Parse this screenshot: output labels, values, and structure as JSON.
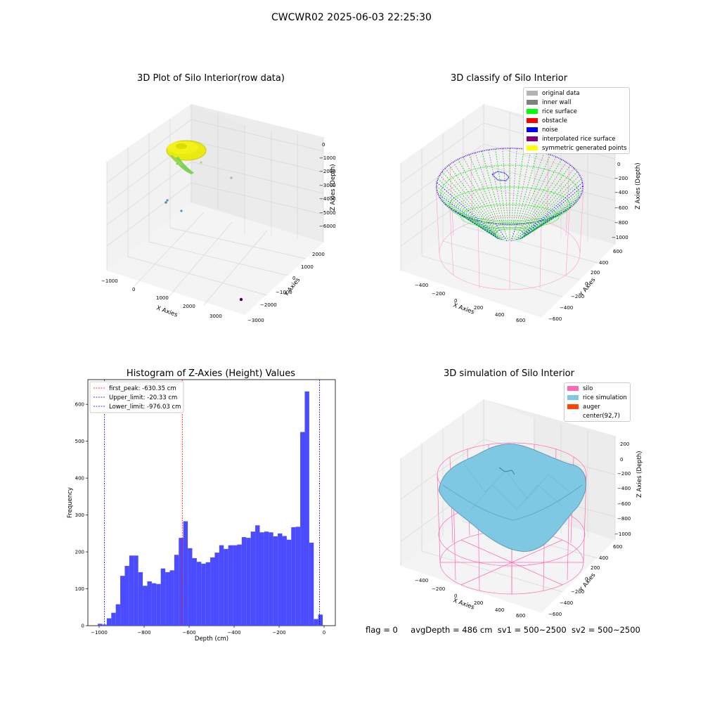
{
  "figure_title": "CWCWR02 2025-06-03 22:25:30",
  "footer": {
    "flag": "flag = 0",
    "avg_depth": "avgDepth = 486 cm",
    "sv1": "sv1 = 500~2500",
    "sv2": "sv2 = 500~2500"
  },
  "colors": {
    "hist_bar": "#4b4bff",
    "first_peak_line": "#ff0000",
    "limit_line": "#0000cc",
    "original_data": "#b3b3b3",
    "inner_wall": "#808080",
    "rice_surface": "#00ff00",
    "obstacle": "#ff0000",
    "noise": "#0000ff",
    "interpolated_rice_surface": "#800080",
    "symmetric_generated_points": "#ffff00",
    "silo": "#ff69b4",
    "rice_simulation": "#7ec8e3",
    "auger": "#ff4500"
  },
  "chart_data": [
    {
      "type": "scatter",
      "title": "3D Plot of Silo Interior(row data)",
      "xlabel": "X Axies",
      "ylabel": "Y Axies",
      "zlabel": "Z Axies (Depth)",
      "x_ticks": [
        "−1000",
        "0",
        "1000",
        "2000",
        "3000"
      ],
      "y_ticks": [
        "−3000",
        "−2000",
        "−1000",
        "0",
        "1000",
        "2000"
      ],
      "z_ticks": [
        "−6000",
        "−5000",
        "−4000",
        "−3000",
        "−2000",
        "−1000",
        "0"
      ],
      "outliers": [
        {
          "x": 3200,
          "y": -3000,
          "z": -6000,
          "color": "#4b0055"
        },
        {
          "x": -400,
          "y": 800,
          "z": -4500,
          "color": "#5b8fb0"
        },
        {
          "x": -300,
          "y": 700,
          "z": -4300,
          "color": "#5b8fb0"
        },
        {
          "x": 0,
          "y": 500,
          "z": -4800,
          "color": "#5b8fb0"
        },
        {
          "x": 1500,
          "y": 2000,
          "z": -3000,
          "color": "#8fbf9f"
        }
      ]
    },
    {
      "type": "scatter",
      "title": "3D classify of Silo Interior",
      "xlabel": "X Axies",
      "ylabel": "Y Axies",
      "zlabel": "Z Axies (Depth)",
      "x_ticks": [
        "−400",
        "−200",
        "0",
        "200",
        "400",
        "600"
      ],
      "y_ticks": [
        "−600",
        "−400",
        "−200",
        "0",
        "200",
        "400",
        "600"
      ],
      "z_ticks": [
        "−1000",
        "−800",
        "−600",
        "−400",
        "−200",
        "0",
        "200"
      ],
      "legend": [
        {
          "label": "original data",
          "color": "#b3b3b3"
        },
        {
          "label": "inner wall",
          "color": "#808080"
        },
        {
          "label": "rice surface",
          "color": "#00ff00"
        },
        {
          "label": "obstacle",
          "color": "#ff0000"
        },
        {
          "label": "noise",
          "color": "#0000ff"
        },
        {
          "label": "interpolated rice surface",
          "color": "#800080"
        },
        {
          "label": "symmetric generated points",
          "color": "#ffff00"
        }
      ]
    },
    {
      "type": "bar",
      "title": "Histogram of Z-Axies (Height) Values",
      "xlabel": "Depth (cm)",
      "ylabel": "Frequency",
      "xlim": [
        -1050,
        50
      ],
      "ylim": [
        0,
        667
      ],
      "x_ticks": [
        -1000,
        -800,
        -600,
        -400,
        -200,
        0
      ],
      "x_tick_labels": [
        "−1000",
        "−800",
        "−600",
        "−400",
        "−200",
        "0"
      ],
      "y_ticks": [
        0,
        100,
        200,
        300,
        400,
        500,
        600
      ],
      "bin_start": -1006,
      "bin_width": 20,
      "values": [
        5,
        3,
        20,
        35,
        58,
        135,
        162,
        190,
        190,
        145,
        108,
        120,
        115,
        113,
        155,
        145,
        150,
        192,
        238,
        283,
        210,
        183,
        173,
        168,
        172,
        185,
        198,
        218,
        208,
        218,
        218,
        220,
        240,
        238,
        255,
        272,
        253,
        255,
        253,
        242,
        250,
        243,
        233,
        267,
        268,
        525,
        635,
        225,
        18,
        30
      ],
      "vlines": [
        {
          "x": -630.35,
          "color": "#ff0000",
          "label": "first_peak: -630.35 cm"
        },
        {
          "x": -20.33,
          "color": "#0000cc",
          "label": "Upper_limit: -20.33 cm"
        },
        {
          "x": -976.03,
          "color": "#0000cc",
          "label": "Lower_limit: -976.03 cm"
        }
      ],
      "legend_position": "top-left"
    },
    {
      "type": "area",
      "title": "3D simulation of Silo Interior",
      "xlabel": "X Axies",
      "ylabel": "Y Axies",
      "zlabel": "Z Axies (Depth)",
      "x_ticks": [
        "−400",
        "−200",
        "0",
        "200",
        "400",
        "600"
      ],
      "y_ticks": [
        "−600",
        "−400",
        "−200",
        "0",
        "200",
        "400",
        "600"
      ],
      "z_ticks": [
        "−1000",
        "−800",
        "−600",
        "−400",
        "−200",
        "0",
        "200"
      ],
      "legend": [
        {
          "label": "silo",
          "color": "#ff69b4"
        },
        {
          "label": "rice simulation",
          "color": "#7ec8e3"
        },
        {
          "label": "auger",
          "color": "#ff4500"
        },
        {
          "label": "center(92,7)",
          "color": ""
        }
      ]
    }
  ]
}
